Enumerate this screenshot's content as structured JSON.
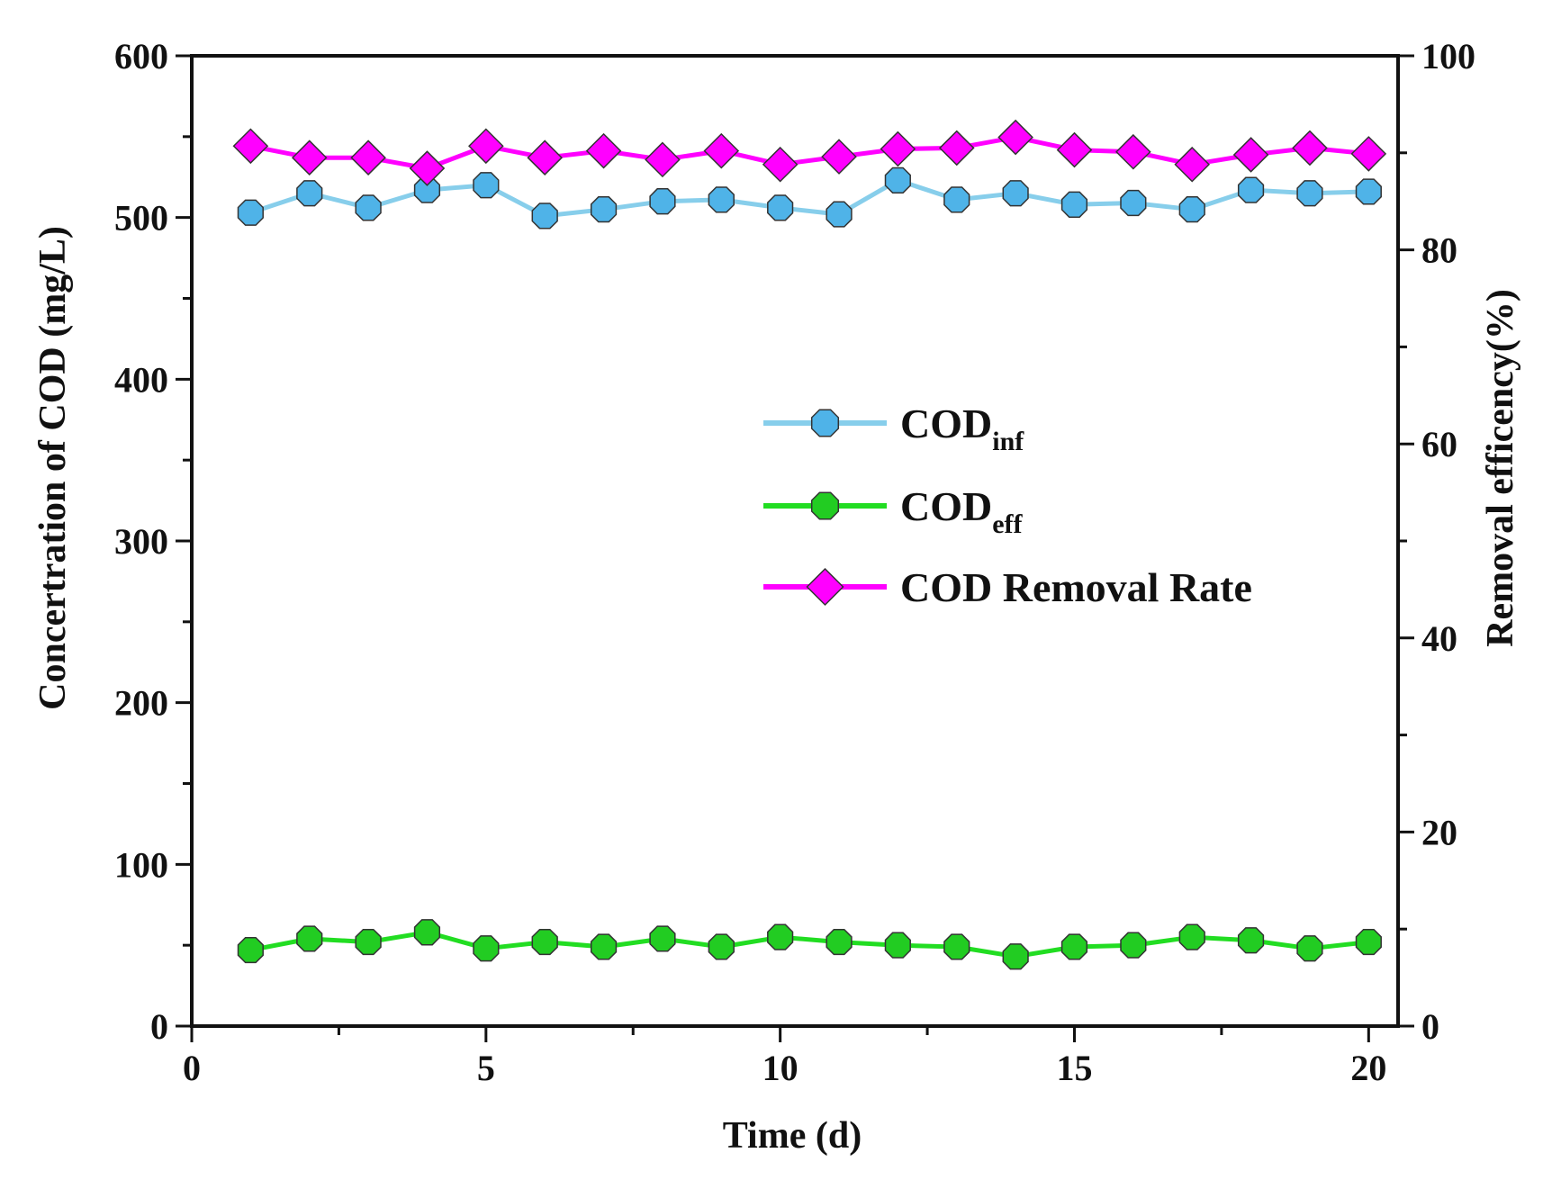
{
  "chart_data": {
    "type": "line",
    "title": "",
    "xlabel": "Time (d)",
    "ylabel": "Concertration of COD (mg/L)",
    "y2label": "Removal efficency(%)",
    "xlim": [
      0,
      20.5
    ],
    "ylim": [
      0,
      600
    ],
    "y2lim": [
      0,
      100
    ],
    "xticks": [
      0,
      5,
      10,
      15,
      20
    ],
    "yticks": [
      0,
      100,
      200,
      300,
      400,
      500,
      600
    ],
    "y2ticks": [
      0,
      20,
      40,
      60,
      80,
      100
    ],
    "legend_position": "center-right",
    "x": [
      1,
      2,
      3,
      4,
      5,
      6,
      7,
      8,
      9,
      10,
      11,
      12,
      13,
      14,
      15,
      16,
      17,
      18,
      19,
      20
    ],
    "series": [
      {
        "name": "COD",
        "subscript": "inf",
        "axis": "left",
        "marker": "octagon",
        "line_color": "#87CEEB",
        "marker_color": "#4FB3E8",
        "values": [
          503,
          515,
          506,
          517,
          520,
          501,
          505,
          510,
          511,
          506,
          502,
          523,
          511,
          515,
          508,
          509,
          505,
          517,
          515,
          516
        ]
      },
      {
        "name": "COD",
        "subscript": "eff",
        "axis": "left",
        "marker": "octagon",
        "line_color": "#22DD22",
        "marker_color": "#22CC22",
        "values": [
          47,
          54,
          52,
          58,
          48,
          52,
          49,
          54,
          49,
          55,
          52,
          50,
          49,
          43,
          49,
          50,
          55,
          53,
          48,
          52
        ]
      },
      {
        "name": "COD Removal Rate",
        "subscript": "",
        "axis": "right",
        "marker": "diamond",
        "line_color": "#FF00FF",
        "marker_color": "#FF00FF",
        "values": [
          90.7,
          89.5,
          89.5,
          88.4,
          90.7,
          89.5,
          90.2,
          89.3,
          90.2,
          88.8,
          89.6,
          90.4,
          90.5,
          91.6,
          90.3,
          90.1,
          88.8,
          89.8,
          90.5,
          89.9
        ]
      }
    ]
  }
}
